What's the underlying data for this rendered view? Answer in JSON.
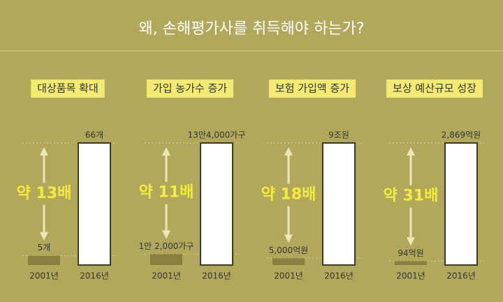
{
  "title": "왜, 손해평가사를 취득해야 하는가?",
  "chart_data": [
    {
      "type": "bar",
      "title": "대상품목 확대",
      "categories": [
        "2001년",
        "2016년"
      ],
      "values": [
        5,
        66
      ],
      "value_labels": [
        "5개",
        "66개"
      ],
      "annotation": "약 13배",
      "colors": [
        "#8a7f3e",
        "#ffffff"
      ]
    },
    {
      "type": "bar",
      "title": "가입 농가수 증가",
      "categories": [
        "2001년",
        "2016년"
      ],
      "values": [
        12000,
        134000
      ],
      "value_labels": [
        "1만 2,000가구",
        "13만4,000가구"
      ],
      "annotation": "약 11배",
      "colors": [
        "#8a7f3e",
        "#ffffff"
      ]
    },
    {
      "type": "bar",
      "title": "보험 가입액 증가",
      "categories": [
        "2001년",
        "2016년"
      ],
      "values": [
        5000,
        90000
      ],
      "value_labels": [
        "5,000억원",
        "9조원"
      ],
      "annotation": "약 18배",
      "colors": [
        "#8a7f3e",
        "#ffffff"
      ]
    },
    {
      "type": "bar",
      "title": "보상 예산규모 성장",
      "categories": [
        "2001년",
        "2016년"
      ],
      "values": [
        94,
        2869
      ],
      "value_labels": [
        "94억원",
        "2,869억원"
      ],
      "annotation": "약 31배",
      "colors": [
        "#8a7f3e",
        "#ffffff"
      ]
    }
  ]
}
